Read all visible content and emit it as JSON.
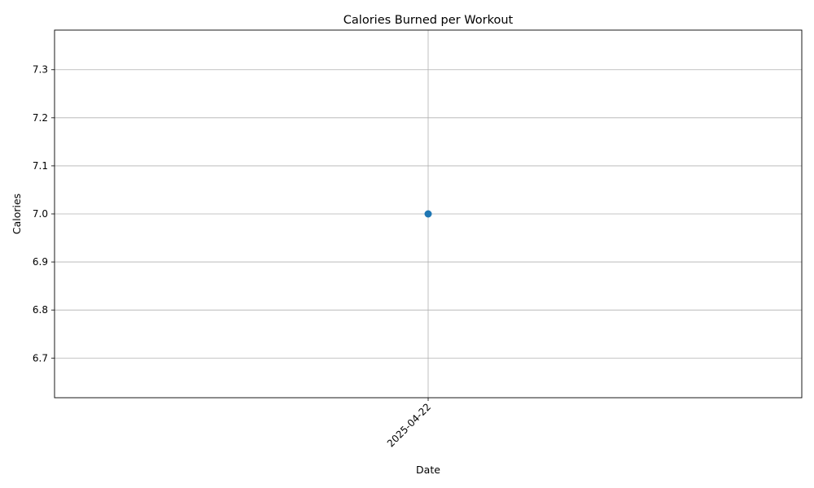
{
  "chart_data": {
    "type": "line",
    "title": "Calories Burned per Workout",
    "xlabel": "Date",
    "ylabel": "Calories",
    "categories": [
      "2025-04-22"
    ],
    "series": [
      {
        "values": [
          7.0
        ],
        "color": "#1f77b4",
        "marker": "circle"
      }
    ],
    "ylim": [
      6.6175,
      7.3825
    ],
    "yticks": [
      6.7,
      6.8,
      6.9,
      7.0,
      7.1,
      7.2,
      7.3
    ],
    "ytick_labels": [
      "6.7",
      "6.8",
      "6.9",
      "7.0",
      "7.1",
      "7.2",
      "7.3"
    ],
    "x_tick_rotation_deg": 45,
    "grid": true,
    "legend": false
  }
}
